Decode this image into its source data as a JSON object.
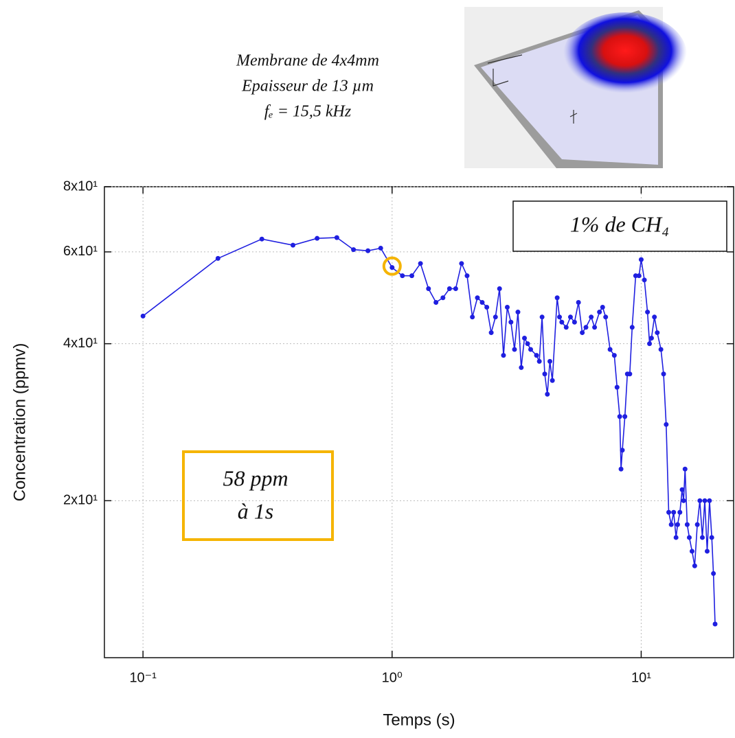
{
  "chart_data": {
    "type": "line",
    "xlabel": "Temps (s)",
    "ylabel": "Concentration (ppmv)",
    "notes": [
      "Membrane de 4x4mm",
      "Epaisseur de 13 µm",
      "fₑ = 15,5 kHz"
    ],
    "gas_label": "1% de CH₄",
    "limit_label": [
      "58 ppm",
      "à 1s"
    ],
    "xscale": "log",
    "yscale": "log",
    "grid": true,
    "color": "#1f1fe0",
    "highlight_color": "#f5b400",
    "xlim": [
      0.07,
      23.5
    ],
    "ylim": [
      10,
      80
    ],
    "xticks": [
      {
        "value": 0.1,
        "label": "10⁻¹"
      },
      {
        "value": 1,
        "label": "10⁰"
      },
      {
        "value": 10,
        "label": "10¹"
      }
    ],
    "yticks": [
      {
        "value": 20,
        "label": "2x10¹"
      },
      {
        "value": 40,
        "label": "4x10¹"
      },
      {
        "value": 60,
        "label": "6x10¹"
      },
      {
        "value": 80,
        "label": "8x10¹"
      }
    ],
    "x": [
      0.1,
      0.2,
      0.3,
      0.4,
      0.5,
      0.6,
      0.7,
      0.8,
      0.9,
      1.0,
      1.1,
      1.2,
      1.3,
      1.4,
      1.5,
      1.6,
      1.7,
      1.8,
      1.9,
      2.0,
      2.1,
      2.2,
      2.3,
      2.4,
      2.5,
      2.6,
      2.7,
      2.8,
      2.9,
      3.0,
      3.1,
      3.2,
      3.3,
      3.4,
      3.5,
      3.6,
      3.8,
      3.9,
      4.0,
      4.1,
      4.2,
      4.3,
      4.4,
      4.6,
      4.7,
      4.8,
      5.0,
      5.2,
      5.4,
      5.6,
      5.8,
      6.0,
      6.3,
      6.5,
      6.8,
      7.0,
      7.2,
      7.5,
      7.8,
      8.0,
      8.2,
      8.3,
      8.4,
      8.6,
      8.8,
      9.0,
      9.2,
      9.5,
      9.8,
      10.0,
      10.3,
      10.6,
      10.8,
      11.0,
      11.3,
      11.6,
      12.0,
      12.3,
      12.6,
      12.9,
      13.2,
      13.5,
      13.8,
      14.0,
      14.3,
      14.6,
      14.8,
      15.0,
      15.3,
      15.6,
      16.0,
      16.4,
      16.8,
      17.2,
      17.6,
      18.0,
      18.4,
      18.8,
      19.2,
      19.5,
      19.8
    ],
    "values": [
      45.2,
      58.3,
      63.5,
      61.8,
      63.7,
      63.9,
      60.6,
      60.3,
      61.0,
      56,
      54,
      54,
      57,
      51,
      48,
      49,
      51,
      51,
      57,
      54,
      45,
      49,
      48,
      47,
      42,
      45,
      51,
      38,
      47,
      44,
      39,
      46,
      36,
      41,
      40,
      39,
      38,
      37,
      45,
      35,
      32,
      37,
      34,
      49,
      45,
      44,
      43,
      45,
      44,
      48,
      42,
      43,
      45,
      43,
      46,
      47,
      45,
      39,
      38,
      33,
      29,
      23,
      25,
      29,
      35,
      35,
      43,
      54,
      54,
      58,
      53,
      46,
      40,
      41,
      45,
      42,
      39,
      35,
      28,
      19,
      18,
      19,
      17,
      18,
      19,
      21,
      20,
      23,
      18,
      17,
      16,
      15,
      18,
      20,
      17,
      20,
      16,
      20,
      17,
      14.5,
      11.6
    ]
  }
}
